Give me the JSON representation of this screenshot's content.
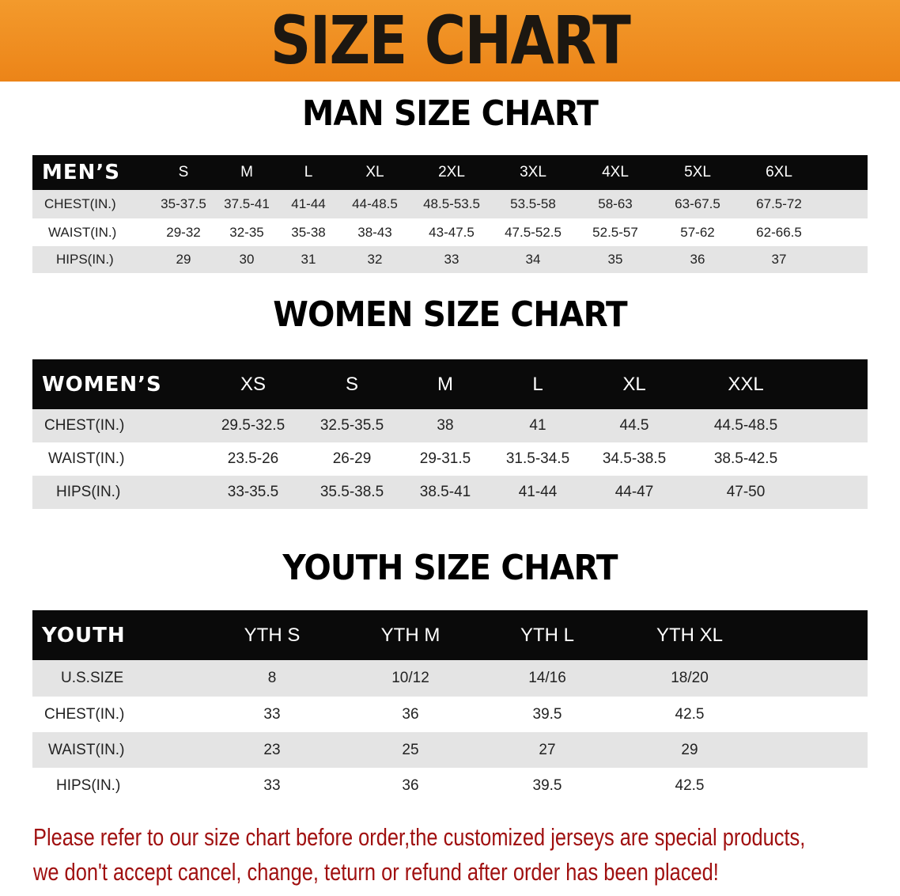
{
  "banner": {
    "title": "SIZE CHART",
    "color": "#ee8b1f"
  },
  "men": {
    "title": "MAN SIZE CHART",
    "header": "MEN’S",
    "columns": [
      "S",
      "M",
      "L",
      "XL",
      "2XL",
      "3XL",
      "4XL",
      "5XL",
      "6XL"
    ],
    "rows": [
      {
        "label": "CHEST(IN.)",
        "values": [
          "35-37.5",
          "37.5-41",
          "41-44",
          "44-48.5",
          "48.5-53.5",
          "53.5-58",
          "58-63",
          "63-67.5",
          "67.5-72"
        ]
      },
      {
        "label": "WAIST(IN.)",
        "values": [
          "29-32",
          "32-35",
          "35-38",
          "38-43",
          "43-47.5",
          "47.5-52.5",
          "52.5-57",
          "57-62",
          "62-66.5"
        ]
      },
      {
        "label": "HIPS(IN.)",
        "values": [
          "29",
          "30",
          "31",
          "32",
          "33",
          "34",
          "35",
          "36",
          "37"
        ]
      }
    ]
  },
  "women": {
    "title": "WOMEN SIZE CHART",
    "header": "WOMEN’S",
    "columns": [
      "XS",
      "S",
      "M",
      "L",
      "XL",
      "XXL"
    ],
    "rows": [
      {
        "label": "CHEST(IN.)",
        "values": [
          "29.5-32.5",
          "32.5-35.5",
          "38",
          "41",
          "44.5",
          "44.5-48.5"
        ]
      },
      {
        "label": "WAIST(IN.)",
        "values": [
          "23.5-26",
          "26-29",
          "29-31.5",
          "31.5-34.5",
          "34.5-38.5",
          "38.5-42.5"
        ]
      },
      {
        "label": "HIPS(IN.)",
        "values": [
          "33-35.5",
          "35.5-38.5",
          "38.5-41",
          "41-44",
          "44-47",
          "47-50"
        ]
      }
    ]
  },
  "youth": {
    "title": "YOUTH SIZE CHART",
    "header": "YOUTH",
    "columns": [
      "YTH S",
      "YTH M",
      "YTH L",
      "YTH XL"
    ],
    "rows": [
      {
        "label": "U.S.SIZE",
        "values": [
          "8",
          "10/12",
          "14/16",
          "18/20"
        ]
      },
      {
        "label": "CHEST(IN.)",
        "values": [
          "33",
          "36",
          "39.5",
          "42.5"
        ]
      },
      {
        "label": "WAIST(IN.)",
        "values": [
          "23",
          "25",
          "27",
          "29"
        ]
      },
      {
        "label": "HIPS(IN.)",
        "values": [
          "33",
          "36",
          "39.5",
          "42.5"
        ]
      }
    ]
  },
  "notice": {
    "line1": "Please refer to our size chart before order,the customized jerseys are special products,",
    "line2": "we don't accept cancel, change, teturn or refund after order has been placed!",
    "color": "#a01010"
  }
}
